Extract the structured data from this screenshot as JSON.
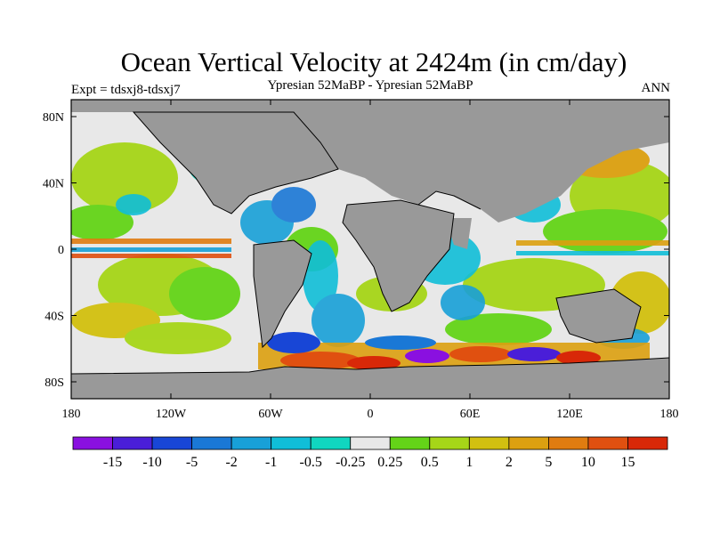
{
  "title": "Ocean Vertical Velocity at 2424m (in cm/day)",
  "subtitle": "Ypresian  52MaBP - Ypresian  52MaBP",
  "expt_label": "Expt = tdsxj8-tdsxj7",
  "season": "ANN",
  "map": {
    "lon_ticks": [
      "180",
      "120W",
      "60W",
      "0",
      "60E",
      "120E",
      "180"
    ],
    "lat_ticks": [
      "80N",
      "40N",
      "0",
      "40S",
      "80S"
    ],
    "land_color": "#999999",
    "missing_color": "#e8e8e8"
  },
  "colorbar": {
    "labels": [
      "-15",
      "-10",
      "-5",
      "-2",
      "-1",
      "-0.5",
      "-0.25",
      "0.25",
      "0.5",
      "1",
      "2",
      "5",
      "10",
      "15"
    ],
    "colors": [
      "#8a10e0",
      "#4a1ed8",
      "#1846d6",
      "#1a78d6",
      "#18a0d8",
      "#10bed8",
      "#10d6c0",
      "#e8e8e8",
      "#64d418",
      "#a6d618",
      "#d2c010",
      "#dca010",
      "#e07c10",
      "#e05010",
      "#d82808"
    ]
  }
}
